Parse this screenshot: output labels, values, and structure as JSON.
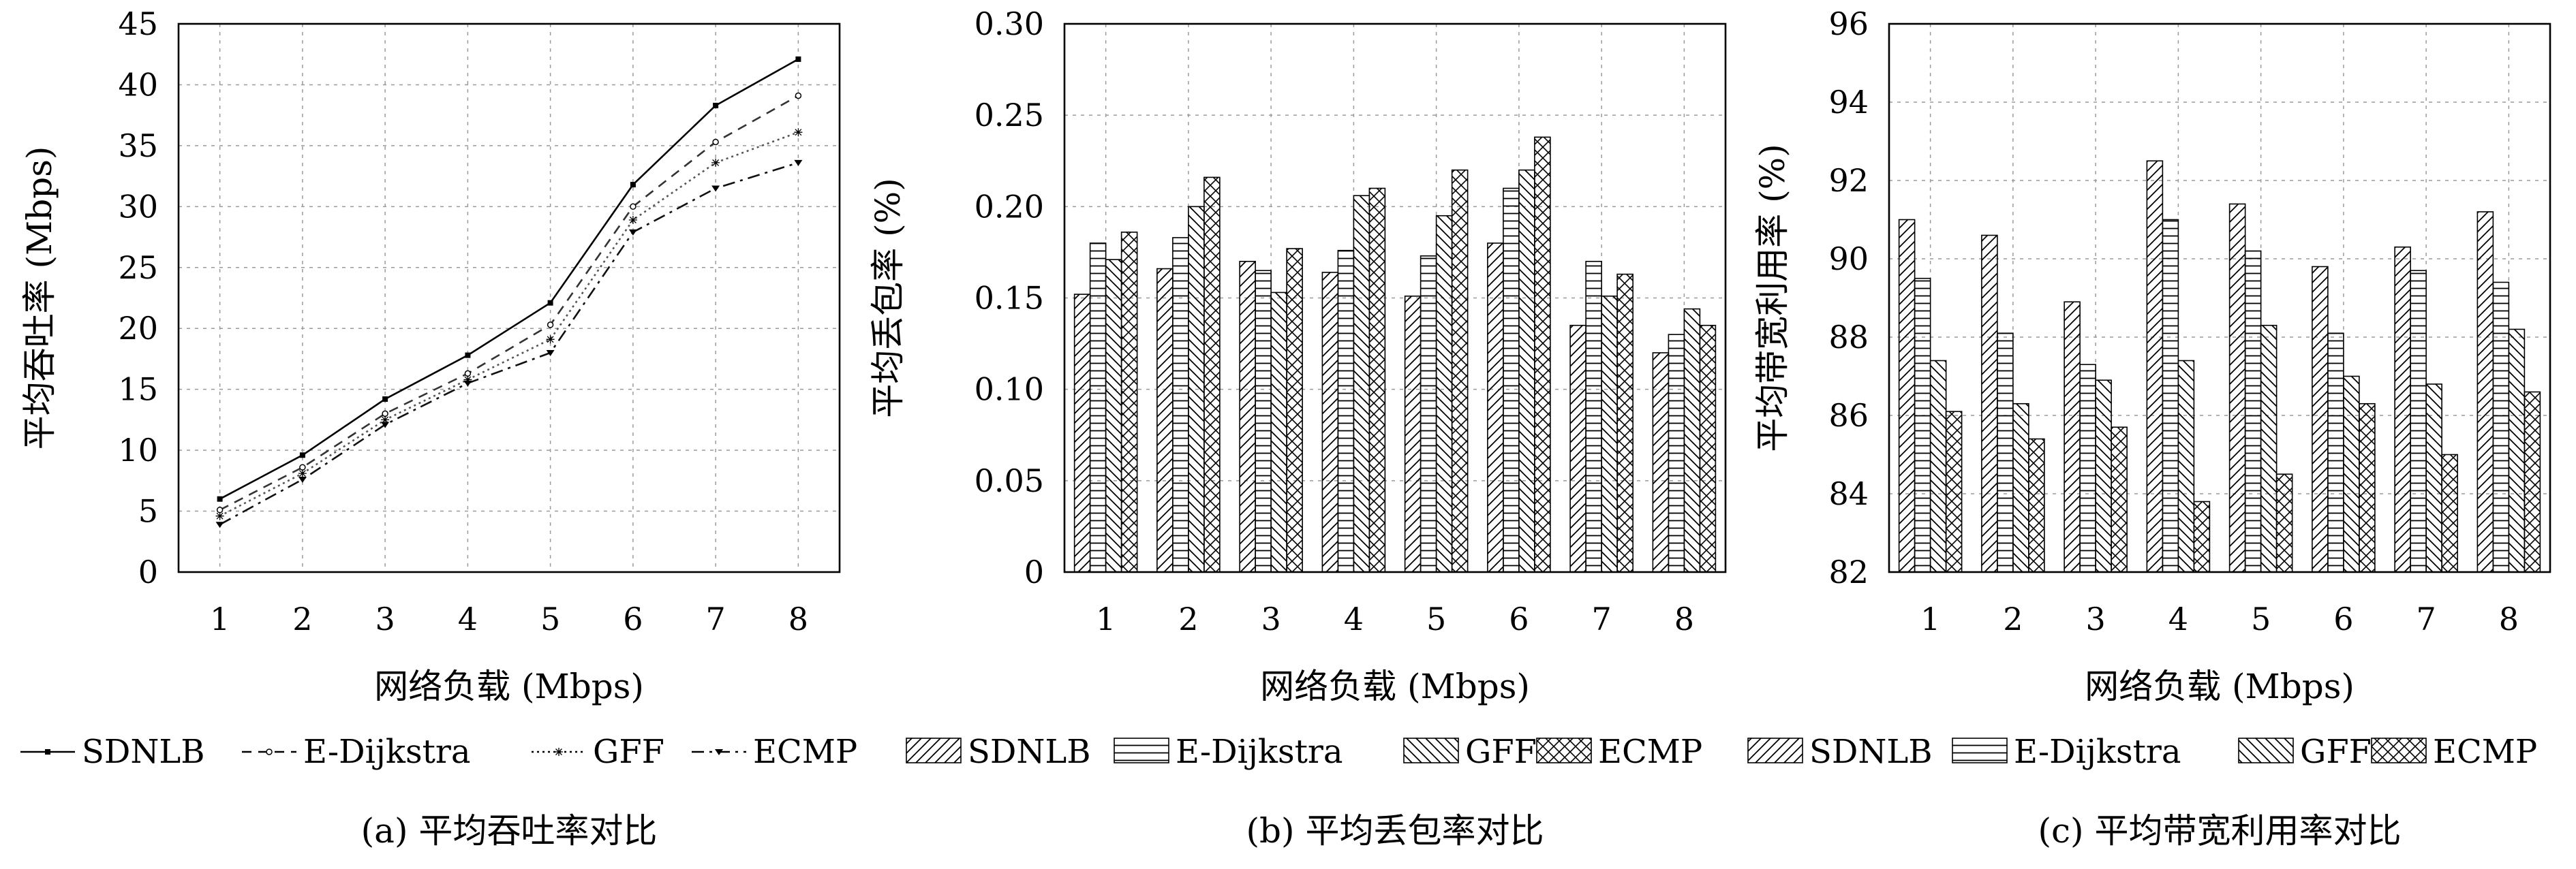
{
  "chart_data": [
    {
      "type": "line",
      "caption": "(a) 平均吞吐率对比",
      "xlabel": "网络负载 (Mbps)",
      "ylabel": "平均吞吐率 (Mbps)",
      "categories": [
        "1",
        "2",
        "3",
        "4",
        "5",
        "6",
        "7",
        "8"
      ],
      "ylim": [
        0,
        45
      ],
      "yticks": [
        0,
        5,
        10,
        15,
        20,
        25,
        30,
        35,
        40,
        45
      ],
      "grid": true,
      "legend_position": "bottom",
      "series": [
        {
          "name": "SDNLB",
          "values": [
            6.0,
            9.6,
            14.2,
            17.8,
            22.1,
            31.8,
            38.3,
            42.1
          ],
          "color": "#000000"
        },
        {
          "name": "E-Dijkstra",
          "values": [
            5.1,
            8.6,
            13.0,
            16.3,
            20.3,
            30.0,
            35.3,
            39.1
          ],
          "color": "#333333"
        },
        {
          "name": "GFF",
          "values": [
            4.6,
            8.1,
            12.5,
            15.8,
            19.1,
            28.9,
            33.6,
            36.1
          ],
          "color": "#555555"
        },
        {
          "name": "ECMP",
          "values": [
            3.9,
            7.6,
            12.1,
            15.5,
            18.0,
            27.9,
            31.5,
            33.6
          ],
          "color": "#111111"
        }
      ]
    },
    {
      "type": "bar",
      "caption": "(b) 平均丢包率对比",
      "xlabel": "网络负载 (Mbps)",
      "ylabel": "平均丢包率 (%)",
      "categories": [
        "1",
        "2",
        "3",
        "4",
        "5",
        "6",
        "7",
        "8"
      ],
      "ylim": [
        0,
        0.3
      ],
      "yticks": [
        "0",
        "0.05",
        "0.10",
        "0.15",
        "0.20",
        "0.25",
        "0.30"
      ],
      "grid": true,
      "legend_position": "bottom",
      "series": [
        {
          "name": "SDNLB",
          "values": [
            0.152,
            0.166,
            0.17,
            0.164,
            0.151,
            0.18,
            0.135,
            0.12
          ]
        },
        {
          "name": "E-Dijkstra",
          "values": [
            0.18,
            0.183,
            0.165,
            0.176,
            0.173,
            0.21,
            0.17,
            0.13
          ]
        },
        {
          "name": "GFF",
          "values": [
            0.171,
            0.2,
            0.153,
            0.206,
            0.195,
            0.22,
            0.151,
            0.144
          ]
        },
        {
          "name": "ECMP",
          "values": [
            0.186,
            0.216,
            0.177,
            0.21,
            0.22,
            0.238,
            0.163,
            0.135
          ]
        }
      ]
    },
    {
      "type": "bar",
      "caption": "(c) 平均带宽利用率对比",
      "xlabel": "网络负载 (Mbps)",
      "ylabel": "平均带宽利用率 (%)",
      "categories": [
        "1",
        "2",
        "3",
        "4",
        "5",
        "6",
        "7",
        "8"
      ],
      "ylim": [
        82,
        96
      ],
      "yticks": [
        82,
        84,
        86,
        88,
        90,
        92,
        94,
        96
      ],
      "grid": true,
      "legend_position": "bottom",
      "series": [
        {
          "name": "SDNLB",
          "values": [
            91.0,
            90.6,
            88.9,
            92.5,
            91.4,
            89.8,
            90.3,
            91.2
          ]
        },
        {
          "name": "E-Dijkstra",
          "values": [
            89.5,
            88.1,
            87.3,
            91.0,
            90.2,
            88.1,
            89.7,
            89.4
          ]
        },
        {
          "name": "GFF",
          "values": [
            87.4,
            86.3,
            86.9,
            87.4,
            88.3,
            87.0,
            86.8,
            88.2
          ]
        },
        {
          "name": "ECMP",
          "values": [
            86.1,
            85.4,
            85.7,
            83.8,
            84.5,
            86.3,
            85.0,
            86.6
          ]
        }
      ]
    }
  ]
}
